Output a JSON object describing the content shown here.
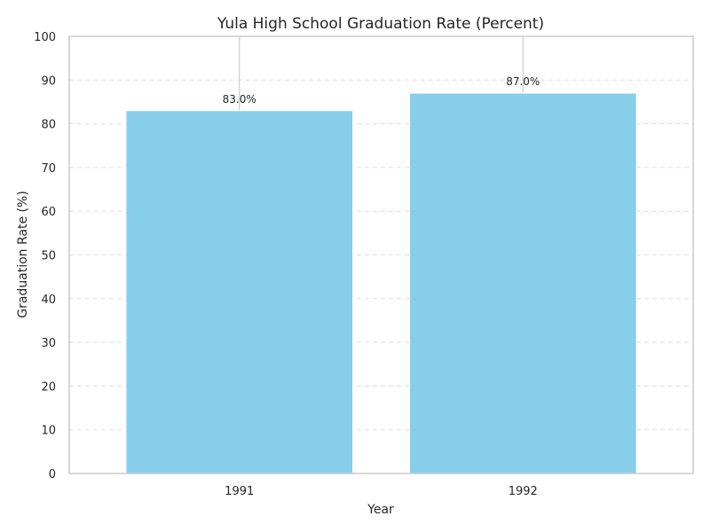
{
  "chart_data": {
    "type": "bar",
    "title": "Yula High School Graduation Rate (Percent)",
    "xlabel": "Year",
    "ylabel": "Graduation Rate (%)",
    "categories": [
      "1991",
      "1992"
    ],
    "values": [
      83.0,
      87.0
    ],
    "data_labels": [
      "83.0%",
      "87.0%"
    ],
    "ylim": [
      0,
      100
    ],
    "yticks": [
      "0",
      "10",
      "20",
      "30",
      "40",
      "50",
      "60",
      "70",
      "80",
      "90",
      "100"
    ],
    "grid": "horizontal dashed plus vertical lines at categories",
    "legend": "none",
    "colors": {
      "bar": "#87ceeb",
      "grid": "#dddddd",
      "axes_edge": "#cccccc",
      "text": "#262626"
    }
  }
}
